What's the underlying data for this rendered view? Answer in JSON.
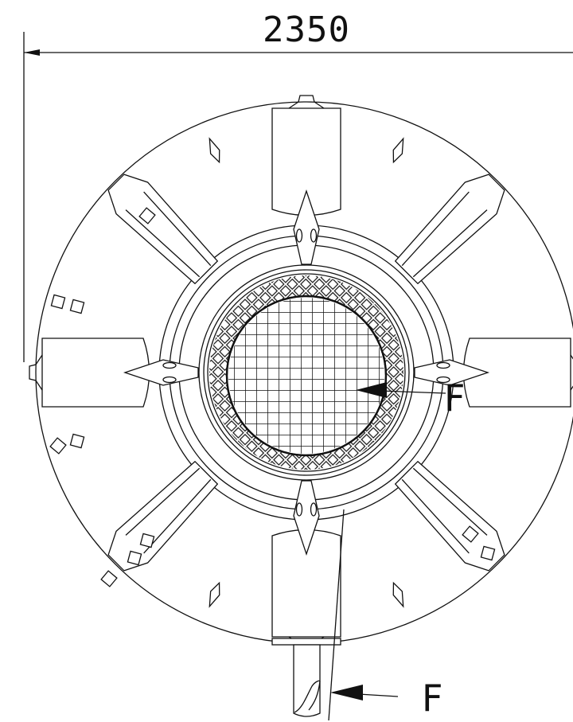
{
  "dimension": {
    "value": "2350"
  },
  "section_labels": {
    "upper": "F",
    "lower": "F"
  },
  "structure": {
    "radial_ribs": 8,
    "square_pads": 10
  },
  "colors": {
    "line": "#111111",
    "background": "#ffffff"
  }
}
